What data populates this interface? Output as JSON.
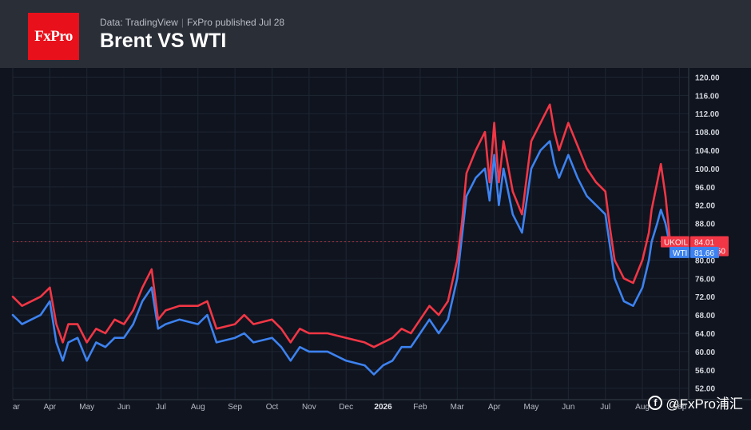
{
  "header": {
    "logo_text": "FxPro",
    "source": "Data: TradingView",
    "separator": "|",
    "published": "FxPro published Jul 28",
    "title": "Brent VS WTI"
  },
  "watermark": {
    "icon": "f",
    "text": "@FxPro浦汇"
  },
  "colors": {
    "brent": "#f23645",
    "wti": "#3d82f0",
    "background": "#0f141f",
    "header": "#2a2e37"
  },
  "chart_data": {
    "type": "line",
    "title": "Brent VS WTI",
    "xlabel": "",
    "ylabel": "",
    "ylim": [
      49.5,
      122
    ],
    "y_ticks": [
      "52.00",
      "56.00",
      "60.00",
      "64.00",
      "68.00",
      "72.00",
      "76.00",
      "80.00",
      "84.00",
      "88.00",
      "92.00",
      "96.00",
      "100.00",
      "104.00",
      "108.00",
      "112.00",
      "116.00",
      "120.00"
    ],
    "x_ticks": [
      {
        "label": "ar",
        "x": 0
      },
      {
        "label": "Apr",
        "x": 4
      },
      {
        "label": "May",
        "x": 8
      },
      {
        "label": "Jun",
        "x": 12
      },
      {
        "label": "Jul",
        "x": 16
      },
      {
        "label": "Aug",
        "x": 20
      },
      {
        "label": "Sep",
        "x": 24
      },
      {
        "label": "Oct",
        "x": 28
      },
      {
        "label": "Nov",
        "x": 32
      },
      {
        "label": "Dec",
        "x": 36
      },
      {
        "label": "2026",
        "x": 40,
        "bold": true
      },
      {
        "label": "Feb",
        "x": 44
      },
      {
        "label": "Mar",
        "x": 48
      },
      {
        "label": "Apr",
        "x": 52
      },
      {
        "label": "May",
        "x": 56
      },
      {
        "label": "Jun",
        "x": 60
      },
      {
        "label": "Jul",
        "x": 64
      },
      {
        "label": "Aug",
        "x": 68
      },
      {
        "label": "Sep",
        "x": 72
      }
    ],
    "xlim": [
      0,
      73
    ],
    "grid": true,
    "series": [
      {
        "name": "UKOIL",
        "color": "#f23645",
        "points": [
          [
            0,
            72
          ],
          [
            1,
            70
          ],
          [
            2,
            71
          ],
          [
            3,
            72
          ],
          [
            4,
            74
          ],
          [
            4.7,
            66
          ],
          [
            5.4,
            62
          ],
          [
            6,
            66
          ],
          [
            7,
            66
          ],
          [
            8,
            62
          ],
          [
            9,
            65
          ],
          [
            10,
            64
          ],
          [
            11,
            67
          ],
          [
            12,
            66
          ],
          [
            13,
            69
          ],
          [
            14,
            74
          ],
          [
            15,
            78
          ],
          [
            15.7,
            67
          ],
          [
            16.5,
            69
          ],
          [
            18,
            70
          ],
          [
            20,
            70
          ],
          [
            21,
            71
          ],
          [
            22,
            65
          ],
          [
            24,
            66
          ],
          [
            25,
            68
          ],
          [
            26,
            66
          ],
          [
            28,
            67
          ],
          [
            29,
            65
          ],
          [
            30,
            62
          ],
          [
            31,
            65
          ],
          [
            32,
            64
          ],
          [
            34,
            64
          ],
          [
            36,
            63
          ],
          [
            38,
            62
          ],
          [
            39,
            61
          ],
          [
            40,
            62
          ],
          [
            41,
            63
          ],
          [
            42,
            65
          ],
          [
            43,
            64
          ],
          [
            44,
            67
          ],
          [
            45,
            70
          ],
          [
            46,
            68
          ],
          [
            47,
            71
          ],
          [
            48,
            80
          ],
          [
            48.5,
            88
          ],
          [
            49,
            99
          ],
          [
            50,
            104
          ],
          [
            51,
            108
          ],
          [
            51.5,
            97
          ],
          [
            52,
            110
          ],
          [
            52.5,
            97
          ],
          [
            53,
            106
          ],
          [
            54,
            95
          ],
          [
            55,
            90
          ],
          [
            56,
            106
          ],
          [
            57,
            110
          ],
          [
            58,
            114
          ],
          [
            58.5,
            108
          ],
          [
            59,
            104
          ],
          [
            60,
            110
          ],
          [
            61,
            105
          ],
          [
            62,
            100
          ],
          [
            63,
            97
          ],
          [
            64,
            95
          ],
          [
            64.5,
            87
          ],
          [
            65,
            80
          ],
          [
            66,
            76
          ],
          [
            67,
            75
          ],
          [
            68,
            80
          ],
          [
            68.7,
            86
          ],
          [
            69,
            91
          ],
          [
            69.6,
            97
          ],
          [
            70,
            101
          ],
          [
            70.5,
            94
          ],
          [
            71,
            84
          ],
          [
            71.5,
            84.01
          ]
        ]
      },
      {
        "name": "WTI",
        "color": "#3d82f0",
        "points": [
          [
            0,
            68
          ],
          [
            1,
            66
          ],
          [
            2,
            67
          ],
          [
            3,
            68
          ],
          [
            4,
            71
          ],
          [
            4.7,
            62
          ],
          [
            5.4,
            58
          ],
          [
            6,
            62
          ],
          [
            7,
            63
          ],
          [
            8,
            58
          ],
          [
            9,
            62
          ],
          [
            10,
            61
          ],
          [
            11,
            63
          ],
          [
            12,
            63
          ],
          [
            13,
            66
          ],
          [
            14,
            71
          ],
          [
            15,
            74
          ],
          [
            15.7,
            65
          ],
          [
            16.5,
            66
          ],
          [
            18,
            67
          ],
          [
            20,
            66
          ],
          [
            21,
            68
          ],
          [
            22,
            62
          ],
          [
            24,
            63
          ],
          [
            25,
            64
          ],
          [
            26,
            62
          ],
          [
            28,
            63
          ],
          [
            29,
            61
          ],
          [
            30,
            58
          ],
          [
            31,
            61
          ],
          [
            32,
            60
          ],
          [
            34,
            60
          ],
          [
            36,
            58
          ],
          [
            38,
            57
          ],
          [
            39,
            55
          ],
          [
            40,
            57
          ],
          [
            41,
            58
          ],
          [
            42,
            61
          ],
          [
            43,
            61
          ],
          [
            44,
            64
          ],
          [
            45,
            67
          ],
          [
            46,
            64
          ],
          [
            47,
            67
          ],
          [
            48,
            76
          ],
          [
            48.5,
            85
          ],
          [
            49,
            94
          ],
          [
            50,
            98
          ],
          [
            51,
            100
          ],
          [
            51.5,
            93
          ],
          [
            52,
            103
          ],
          [
            52.5,
            92
          ],
          [
            53,
            100
          ],
          [
            54,
            90
          ],
          [
            55,
            86
          ],
          [
            56,
            100
          ],
          [
            57,
            104
          ],
          [
            58,
            106
          ],
          [
            58.5,
            101
          ],
          [
            59,
            98
          ],
          [
            60,
            103
          ],
          [
            61,
            98
          ],
          [
            62,
            94
          ],
          [
            63,
            92
          ],
          [
            64,
            90
          ],
          [
            64.5,
            83
          ],
          [
            65,
            76
          ],
          [
            66,
            71
          ],
          [
            67,
            70
          ],
          [
            68,
            74
          ],
          [
            68.7,
            80
          ],
          [
            69,
            84
          ],
          [
            69.6,
            88
          ],
          [
            70,
            91
          ],
          [
            70.5,
            88
          ],
          [
            71,
            83
          ],
          [
            71.5,
            81.66
          ]
        ]
      }
    ],
    "price_tags": [
      {
        "series": "UKOIL",
        "label": "UKOIL",
        "value": "84.01",
        "extra": "15:15:50",
        "level": 84.01,
        "color": "#f23645"
      },
      {
        "series": "WTI",
        "label": "WTI",
        "value": "81.66",
        "level": 81.66,
        "color": "#3d82f0"
      }
    ]
  }
}
